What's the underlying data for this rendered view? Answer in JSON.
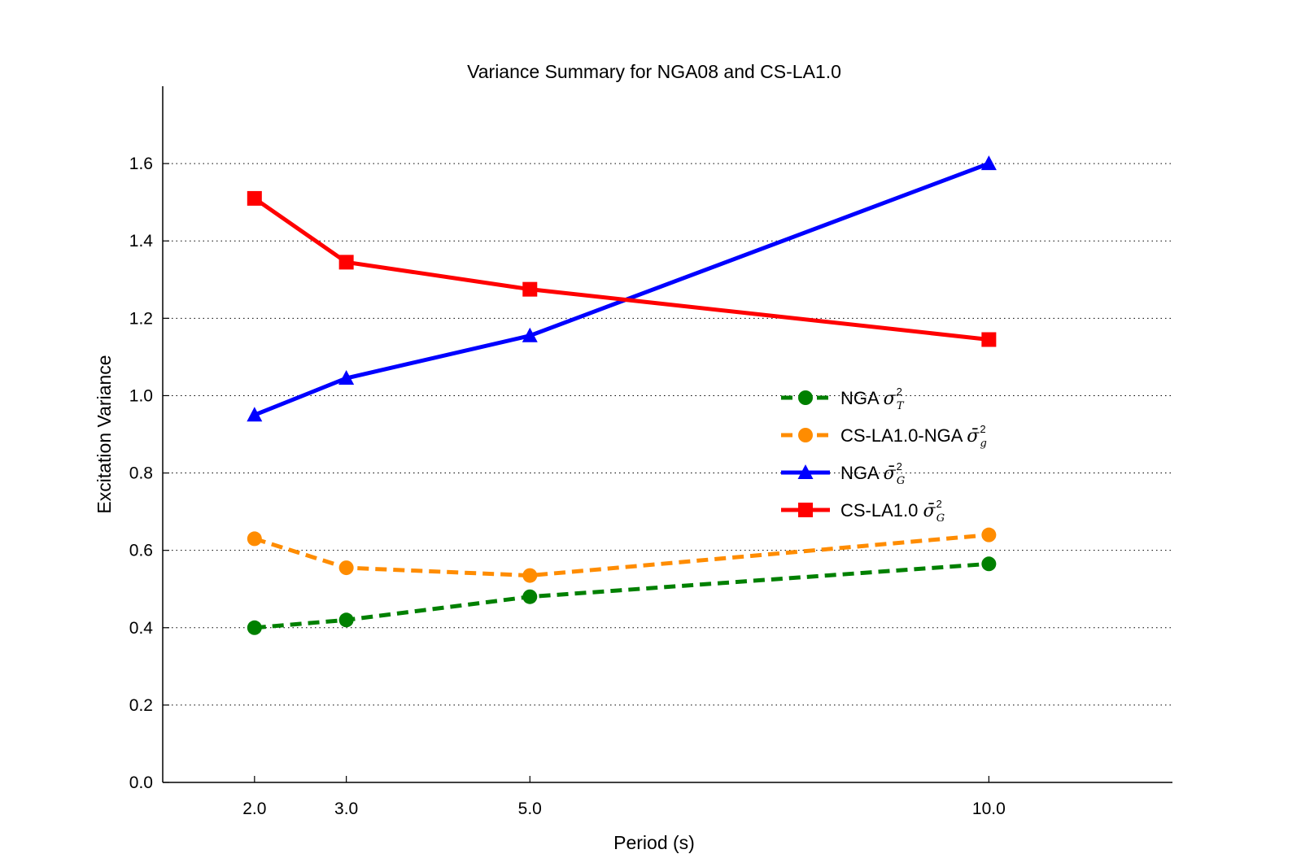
{
  "chart_data": {
    "type": "line",
    "title": "Variance Summary for NGA08 and CS-LA1.0",
    "xlabel": "Period (s)",
    "ylabel": "Excitation Variance",
    "x": [
      2.0,
      3.0,
      5.0,
      10.0
    ],
    "x_tick_labels": [
      "2.0",
      "3.0",
      "5.0",
      "10.0"
    ],
    "xlim": [
      1.0,
      12.0
    ],
    "ylim": [
      0.0,
      1.8
    ],
    "y_ticks": [
      0.0,
      0.2,
      0.4,
      0.6,
      0.8,
      1.0,
      1.2,
      1.4,
      1.6
    ],
    "y_tick_labels": [
      "0.0",
      "0.2",
      "0.4",
      "0.6",
      "0.8",
      "1.0",
      "1.2",
      "1.4",
      "1.6"
    ],
    "grid": "horizontal dotted",
    "legend_position": "center-right",
    "series": [
      {
        "name": "NGA σ²_T",
        "legend_prefix": "NGA ",
        "legend_symbol": "σ",
        "legend_bar": false,
        "legend_sub": "T",
        "color": "#008000",
        "linestyle": "dashed",
        "marker": "circle",
        "values": [
          0.4,
          0.42,
          0.48,
          0.565
        ]
      },
      {
        "name": "CS-LA1.0-NGA σ̄²_g",
        "legend_prefix": "CS-LA1.0-NGA ",
        "legend_symbol": "σ",
        "legend_bar": true,
        "legend_sub": "g",
        "color": "#ff8c00",
        "linestyle": "dashed",
        "marker": "circle",
        "values": [
          0.63,
          0.555,
          0.535,
          0.64
        ]
      },
      {
        "name": "NGA σ̄²_G",
        "legend_prefix": "NGA ",
        "legend_symbol": "σ",
        "legend_bar": true,
        "legend_sub": "G",
        "color": "#0000ff",
        "linestyle": "solid",
        "marker": "triangle",
        "values": [
          0.95,
          1.045,
          1.155,
          1.6
        ]
      },
      {
        "name": "CS-LA1.0 σ̄²_G",
        "legend_prefix": "CS-LA1.0 ",
        "legend_symbol": "σ",
        "legend_bar": true,
        "legend_sub": "G",
        "color": "#ff0000",
        "linestyle": "solid",
        "marker": "square",
        "values": [
          1.51,
          1.345,
          1.275,
          1.145
        ]
      }
    ]
  }
}
